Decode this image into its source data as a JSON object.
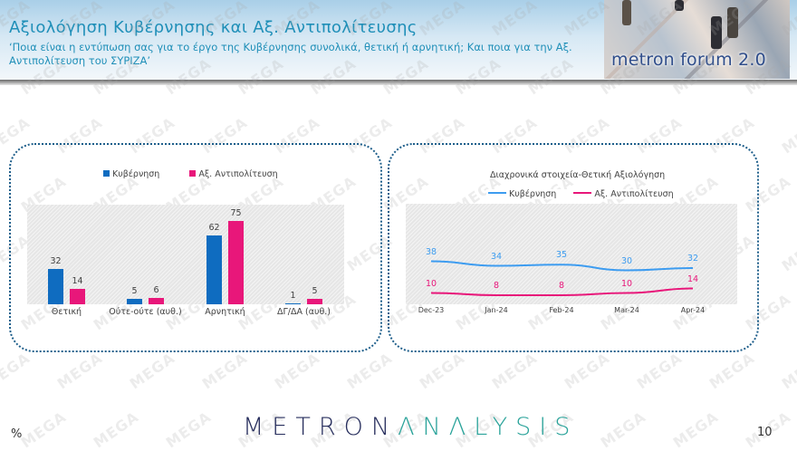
{
  "header": {
    "title": "Αξιολόγηση Κυβέρνησης και Αξ. Αντιπολίτευσης",
    "subtitle": "‘Ποια είναι η εντύπωση σας για το έργο της Κυβέρνησης συνολικά, θετική ή αρνητική; Και ποια για την Αξ. Αντιπολίτευση του ΣΥΡΙΖΑ’",
    "badge_text": "metron forum 2.0"
  },
  "watermark_text": "MEGA",
  "colors": {
    "title": "#1f8fb8",
    "bar_kyvernisi": "#0f6cc0",
    "bar_antipolitevsi": "#e8177a",
    "line_kyvernisi": "#3d9cf0",
    "line_antipolitevsi": "#e8177a",
    "panel_border": "#1f5f8b",
    "logo_dark": "#262d5c",
    "logo_teal": "#2aa39a"
  },
  "footer": {
    "unit": "%",
    "logo_part1": "METRON",
    "logo_part2": "ΛNΛLYSIS",
    "page_number": "10"
  },
  "chart_data": [
    {
      "type": "bar",
      "title": "",
      "categories": [
        "Θετική",
        "Ούτε-ούτε (αυθ.)",
        "Αρνητική",
        "ΔΓ/ΔΑ (αυθ.)"
      ],
      "series": [
        {
          "name": "Κυβέρνηση",
          "values": [
            32,
            5,
            62,
            1
          ]
        },
        {
          "name": "Αξ. Αντιπολίτευση",
          "values": [
            14,
            6,
            75,
            5
          ]
        }
      ],
      "xlabel": "",
      "ylabel": "%",
      "ylim": [
        0,
        80
      ],
      "grid": false,
      "legend_position": "top"
    },
    {
      "type": "line",
      "title": "Διαχρονικά στοιχεία-Θετική Αξιολόγηση",
      "x": [
        "Dec-23",
        "Jan-24",
        "Feb-24",
        "Mar-24",
        "Apr-24"
      ],
      "series": [
        {
          "name": "Κυβέρνηση",
          "values": [
            38,
            34,
            35,
            30,
            32
          ]
        },
        {
          "name": "Αξ. Αντιπολίτευση",
          "values": [
            10,
            8,
            8,
            10,
            14
          ]
        }
      ],
      "xlabel": "",
      "ylabel": "%",
      "ylim": [
        0,
        80
      ],
      "grid": false,
      "legend_position": "top"
    }
  ]
}
